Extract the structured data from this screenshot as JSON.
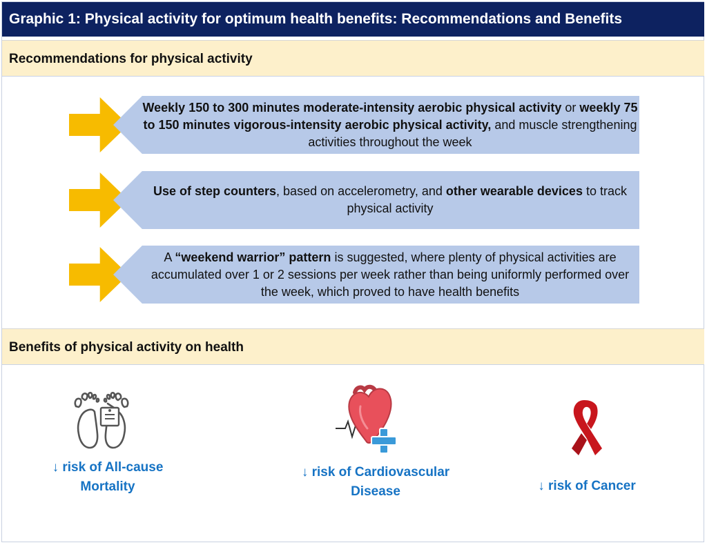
{
  "title": "Graphic 1: Physical activity for optimum health benefits: Recommendations and Benefits",
  "recommendations": {
    "heading": "Recommendations for physical activity",
    "items": [
      {
        "parts": [
          {
            "text": "Weekly 150 to 300 minutes moderate-intensity aerobic physical activity",
            "bold": true
          },
          {
            "text": " or ",
            "bold": false
          },
          {
            "text": "weekly 75 to 150 minutes vigorous-intensity aerobic physical activity,",
            "bold": true
          },
          {
            "text": " and muscle strengthening activities throughout the week",
            "bold": false
          }
        ]
      },
      {
        "parts": [
          {
            "text": "Use of step counters",
            "bold": true
          },
          {
            "text": ", based on accelerometry, and ",
            "bold": false
          },
          {
            "text": "other wearable devices",
            "bold": true
          },
          {
            "text": " to track physical activity",
            "bold": false
          }
        ]
      },
      {
        "parts": [
          {
            "text": "A ",
            "bold": false
          },
          {
            "text": "“weekend warrior” pattern",
            "bold": true
          },
          {
            "text": " is suggested, where plenty of physical activities are accumulated over 1 or 2 sessions per week rather than being uniformly performed over the week, which proved to have health benefits",
            "bold": false
          }
        ]
      }
    ]
  },
  "benefits": {
    "heading": "Benefits of physical activity on health",
    "items": [
      {
        "line1": "↓ risk of All-cause",
        "line2": "Mortality",
        "icon": "feet-with-toe-tag-icon"
      },
      {
        "line1": "↓ risk of Cardiovascular",
        "line2": "Disease",
        "icon": "heart-with-cross-icon"
      },
      {
        "line1": "↓ risk of Cancer",
        "line2": "",
        "icon": "awareness-ribbon-icon"
      }
    ]
  },
  "colors": {
    "title_bg": "#0d2260",
    "section_bg": "#fdf0cb",
    "arrow": "#f7bb00",
    "box": "#b7c9e8",
    "benefit_text": "#1673c4",
    "ribbon": "#c8161d",
    "heart": "#e8505b",
    "cross": "#3a9ad9"
  }
}
